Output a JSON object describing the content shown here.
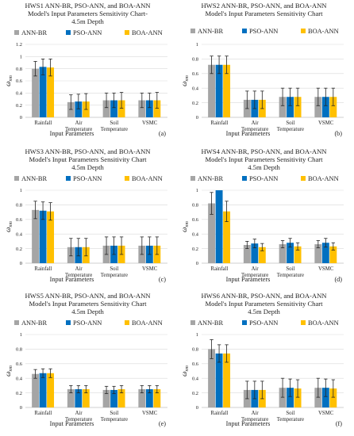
{
  "chart_data": [
    {
      "type": "bar",
      "title_lines": [
        "HWS1 ANN-BR, PSO-ANN, and BOA-ANN",
        "Model's Input Parameters Sensitivity Chart-",
        "4.5m Depth"
      ],
      "categories": [
        [
          "Rainfall"
        ],
        [
          "Air",
          "Temperature"
        ],
        [
          "Soil",
          "Temperature"
        ],
        [
          "VSMC"
        ]
      ],
      "xlabel": "Input Parameters",
      "ylabel": "ω",
      "ylabel_sub": "nm",
      "ylim": [
        0,
        1.2
      ],
      "yticks": [
        "0",
        "0.2",
        "0.4",
        "0.6",
        "0.8",
        "1",
        "1.2"
      ],
      "legend_position": "top",
      "grid": true,
      "panel_label": "(a)",
      "series": [
        {
          "name": "ANN-BR",
          "color": "#a5a5a5",
          "values": [
            0.8,
            0.25,
            0.28,
            0.28
          ],
          "errors": [
            0.12,
            0.12,
            0.12,
            0.12
          ]
        },
        {
          "name": "PSO-ANN",
          "color": "#0070c0",
          "values": [
            0.83,
            0.26,
            0.28,
            0.28
          ],
          "errors": [
            0.13,
            0.12,
            0.12,
            0.12
          ]
        },
        {
          "name": "BOA-ANN",
          "color": "#ffc000",
          "values": [
            0.82,
            0.26,
            0.28,
            0.28
          ],
          "errors": [
            0.14,
            0.13,
            0.13,
            0.13
          ]
        }
      ]
    },
    {
      "type": "bar",
      "title_lines": [
        "HWS2 ANN-BR, PSO-ANN, and BOA-ANN",
        "Model's Input Parameters Sensitivity Chart"
      ],
      "categories": [
        [
          "Rainfall"
        ],
        [
          "Air",
          "Temperature"
        ],
        [
          "Soil",
          "Temperature"
        ],
        [
          "VSMC"
        ]
      ],
      "xlabel": "Input Parameters",
      "ylabel": "ω",
      "ylabel_sub": "nm",
      "ylim": [
        0,
        1
      ],
      "yticks": [
        "0",
        "0.2",
        "0.4",
        "0.6",
        "0.8",
        "1"
      ],
      "legend_position": "top",
      "grid": true,
      "panel_label": "(b)",
      "series": [
        {
          "name": "ANN-BR",
          "color": "#a5a5a5",
          "values": [
            0.72,
            0.24,
            0.28,
            0.28
          ],
          "errors": [
            0.12,
            0.12,
            0.12,
            0.12
          ]
        },
        {
          "name": "PSO-ANN",
          "color": "#0070c0",
          "values": [
            0.72,
            0.24,
            0.28,
            0.28
          ],
          "errors": [
            0.12,
            0.12,
            0.12,
            0.12
          ]
        },
        {
          "name": "BOA-ANN",
          "color": "#ffc000",
          "values": [
            0.72,
            0.24,
            0.28,
            0.28
          ],
          "errors": [
            0.12,
            0.12,
            0.12,
            0.12
          ]
        }
      ]
    },
    {
      "type": "bar",
      "title_lines": [
        "HWS3 ANN-BR, PSO-ANN, and BOA-ANN",
        "Model's Input Parameters Sensitivity Chart",
        "4.5m Depth"
      ],
      "categories": [
        [
          "Rainfall"
        ],
        [
          "Air",
          "Temperature"
        ],
        [
          "Soil",
          "Temperature"
        ],
        [
          "VSMC"
        ]
      ],
      "xlabel": "Input Parameters",
      "ylabel": "ω",
      "ylabel_sub": "nm",
      "ylim": [
        0,
        1
      ],
      "yticks": [
        "0",
        "0.2",
        "0.4",
        "0.6",
        "0.8",
        "1"
      ],
      "legend_position": "top",
      "grid": true,
      "panel_label": "(c)",
      "series": [
        {
          "name": "ANN-BR",
          "color": "#a5a5a5",
          "values": [
            0.73,
            0.22,
            0.24,
            0.24
          ],
          "errors": [
            0.12,
            0.12,
            0.12,
            0.12
          ]
        },
        {
          "name": "PSO-ANN",
          "color": "#0070c0",
          "values": [
            0.72,
            0.22,
            0.24,
            0.24
          ],
          "errors": [
            0.12,
            0.12,
            0.12,
            0.12
          ]
        },
        {
          "name": "BOA-ANN",
          "color": "#ffc000",
          "values": [
            0.71,
            0.22,
            0.24,
            0.24
          ],
          "errors": [
            0.12,
            0.12,
            0.12,
            0.12
          ]
        }
      ]
    },
    {
      "type": "bar",
      "title_lines": [
        "HWS4 ANN-BR, PSO-ANN, and BOA-ANN",
        "Model's Input Parameters Sensitivity Chart",
        "4.5m Depth"
      ],
      "categories": [
        [
          "Rainfall"
        ],
        [
          "Air",
          "Temperature"
        ],
        [
          "Soil",
          "Temperature"
        ],
        [
          "VSMC"
        ]
      ],
      "xlabel": "Input Parameters",
      "ylabel": "ω",
      "ylabel_sub": "nm",
      "ylim": [
        0,
        1
      ],
      "yticks": [
        "0",
        "0.2",
        "0.4",
        "0.6",
        "0.8",
        "1"
      ],
      "legend_position": "top",
      "grid": true,
      "panel_label": "(d)",
      "series": [
        {
          "name": "ANN-BR",
          "color": "#a5a5a5",
          "values": [
            0.82,
            0.25,
            0.26,
            0.26
          ],
          "errors": [
            0.15,
            0.05,
            0.05,
            0.05
          ]
        },
        {
          "name": "PSO-ANN",
          "color": "#0070c0",
          "values": [
            1.0,
            0.27,
            0.28,
            0.28
          ],
          "errors": [
            0.0,
            0.06,
            0.06,
            0.06
          ]
        },
        {
          "name": "BOA-ANN",
          "color": "#ffc000",
          "values": [
            0.71,
            0.22,
            0.23,
            0.23
          ],
          "errors": [
            0.14,
            0.05,
            0.05,
            0.05
          ]
        }
      ]
    },
    {
      "type": "bar",
      "title_lines": [
        "HWS5 ANN-BR, PSO-ANN, and BOA-ANN",
        "Model's Input Parameters Sensitivity Chart",
        "4.5m Depth"
      ],
      "categories": [
        [
          "Rainfall"
        ],
        [
          "Air",
          "Temperature"
        ],
        [
          "Soil",
          "Temperature"
        ],
        [
          "VSMC"
        ]
      ],
      "xlabel": "Input Parameters",
      "ylabel": "ω",
      "ylabel_sub": "nm",
      "ylim": [
        0,
        1
      ],
      "yticks": [
        "0",
        "0.2",
        "0.4",
        "0.6",
        "0.8",
        "1"
      ],
      "legend_position": "top",
      "grid": true,
      "panel_label": "(e)",
      "series": [
        {
          "name": "ANN-BR",
          "color": "#a5a5a5",
          "values": [
            0.46,
            0.25,
            0.24,
            0.25
          ],
          "errors": [
            0.06,
            0.05,
            0.05,
            0.05
          ]
        },
        {
          "name": "PSO-ANN",
          "color": "#0070c0",
          "values": [
            0.47,
            0.25,
            0.24,
            0.25
          ],
          "errors": [
            0.06,
            0.05,
            0.05,
            0.05
          ]
        },
        {
          "name": "BOA-ANN",
          "color": "#ffc000",
          "values": [
            0.47,
            0.25,
            0.25,
            0.25
          ],
          "errors": [
            0.06,
            0.05,
            0.05,
            0.05
          ]
        }
      ]
    },
    {
      "type": "bar",
      "title_lines": [
        "HWS6 ANN-BR, PSO-ANN, and BOA-ANN",
        "Model's Input Parameters Sensitivity Chart",
        "4.5m Depth"
      ],
      "categories": [
        [
          "Rainfall"
        ],
        [
          "Air",
          "Temperature"
        ],
        [
          "Soil",
          "Temperature"
        ],
        [
          "VSMC"
        ]
      ],
      "xlabel": "Input Parameters",
      "ylabel": "ω",
      "ylabel_sub": "nm",
      "ylim": [
        0,
        1
      ],
      "yticks": [
        "0",
        "0.2",
        "0.4",
        "0.6",
        "0.8",
        "1"
      ],
      "legend_position": "top",
      "grid": true,
      "panel_label": "(f)",
      "series": [
        {
          "name": "ANN-BR",
          "color": "#a5a5a5",
          "values": [
            0.8,
            0.24,
            0.27,
            0.27
          ],
          "errors": [
            0.13,
            0.12,
            0.13,
            0.13
          ]
        },
        {
          "name": "PSO-ANN",
          "color": "#0070c0",
          "values": [
            0.74,
            0.24,
            0.27,
            0.27
          ],
          "errors": [
            0.12,
            0.12,
            0.12,
            0.12
          ]
        },
        {
          "name": "BOA-ANN",
          "color": "#ffc000",
          "values": [
            0.74,
            0.24,
            0.26,
            0.26
          ],
          "errors": [
            0.12,
            0.12,
            0.12,
            0.12
          ]
        }
      ]
    }
  ]
}
